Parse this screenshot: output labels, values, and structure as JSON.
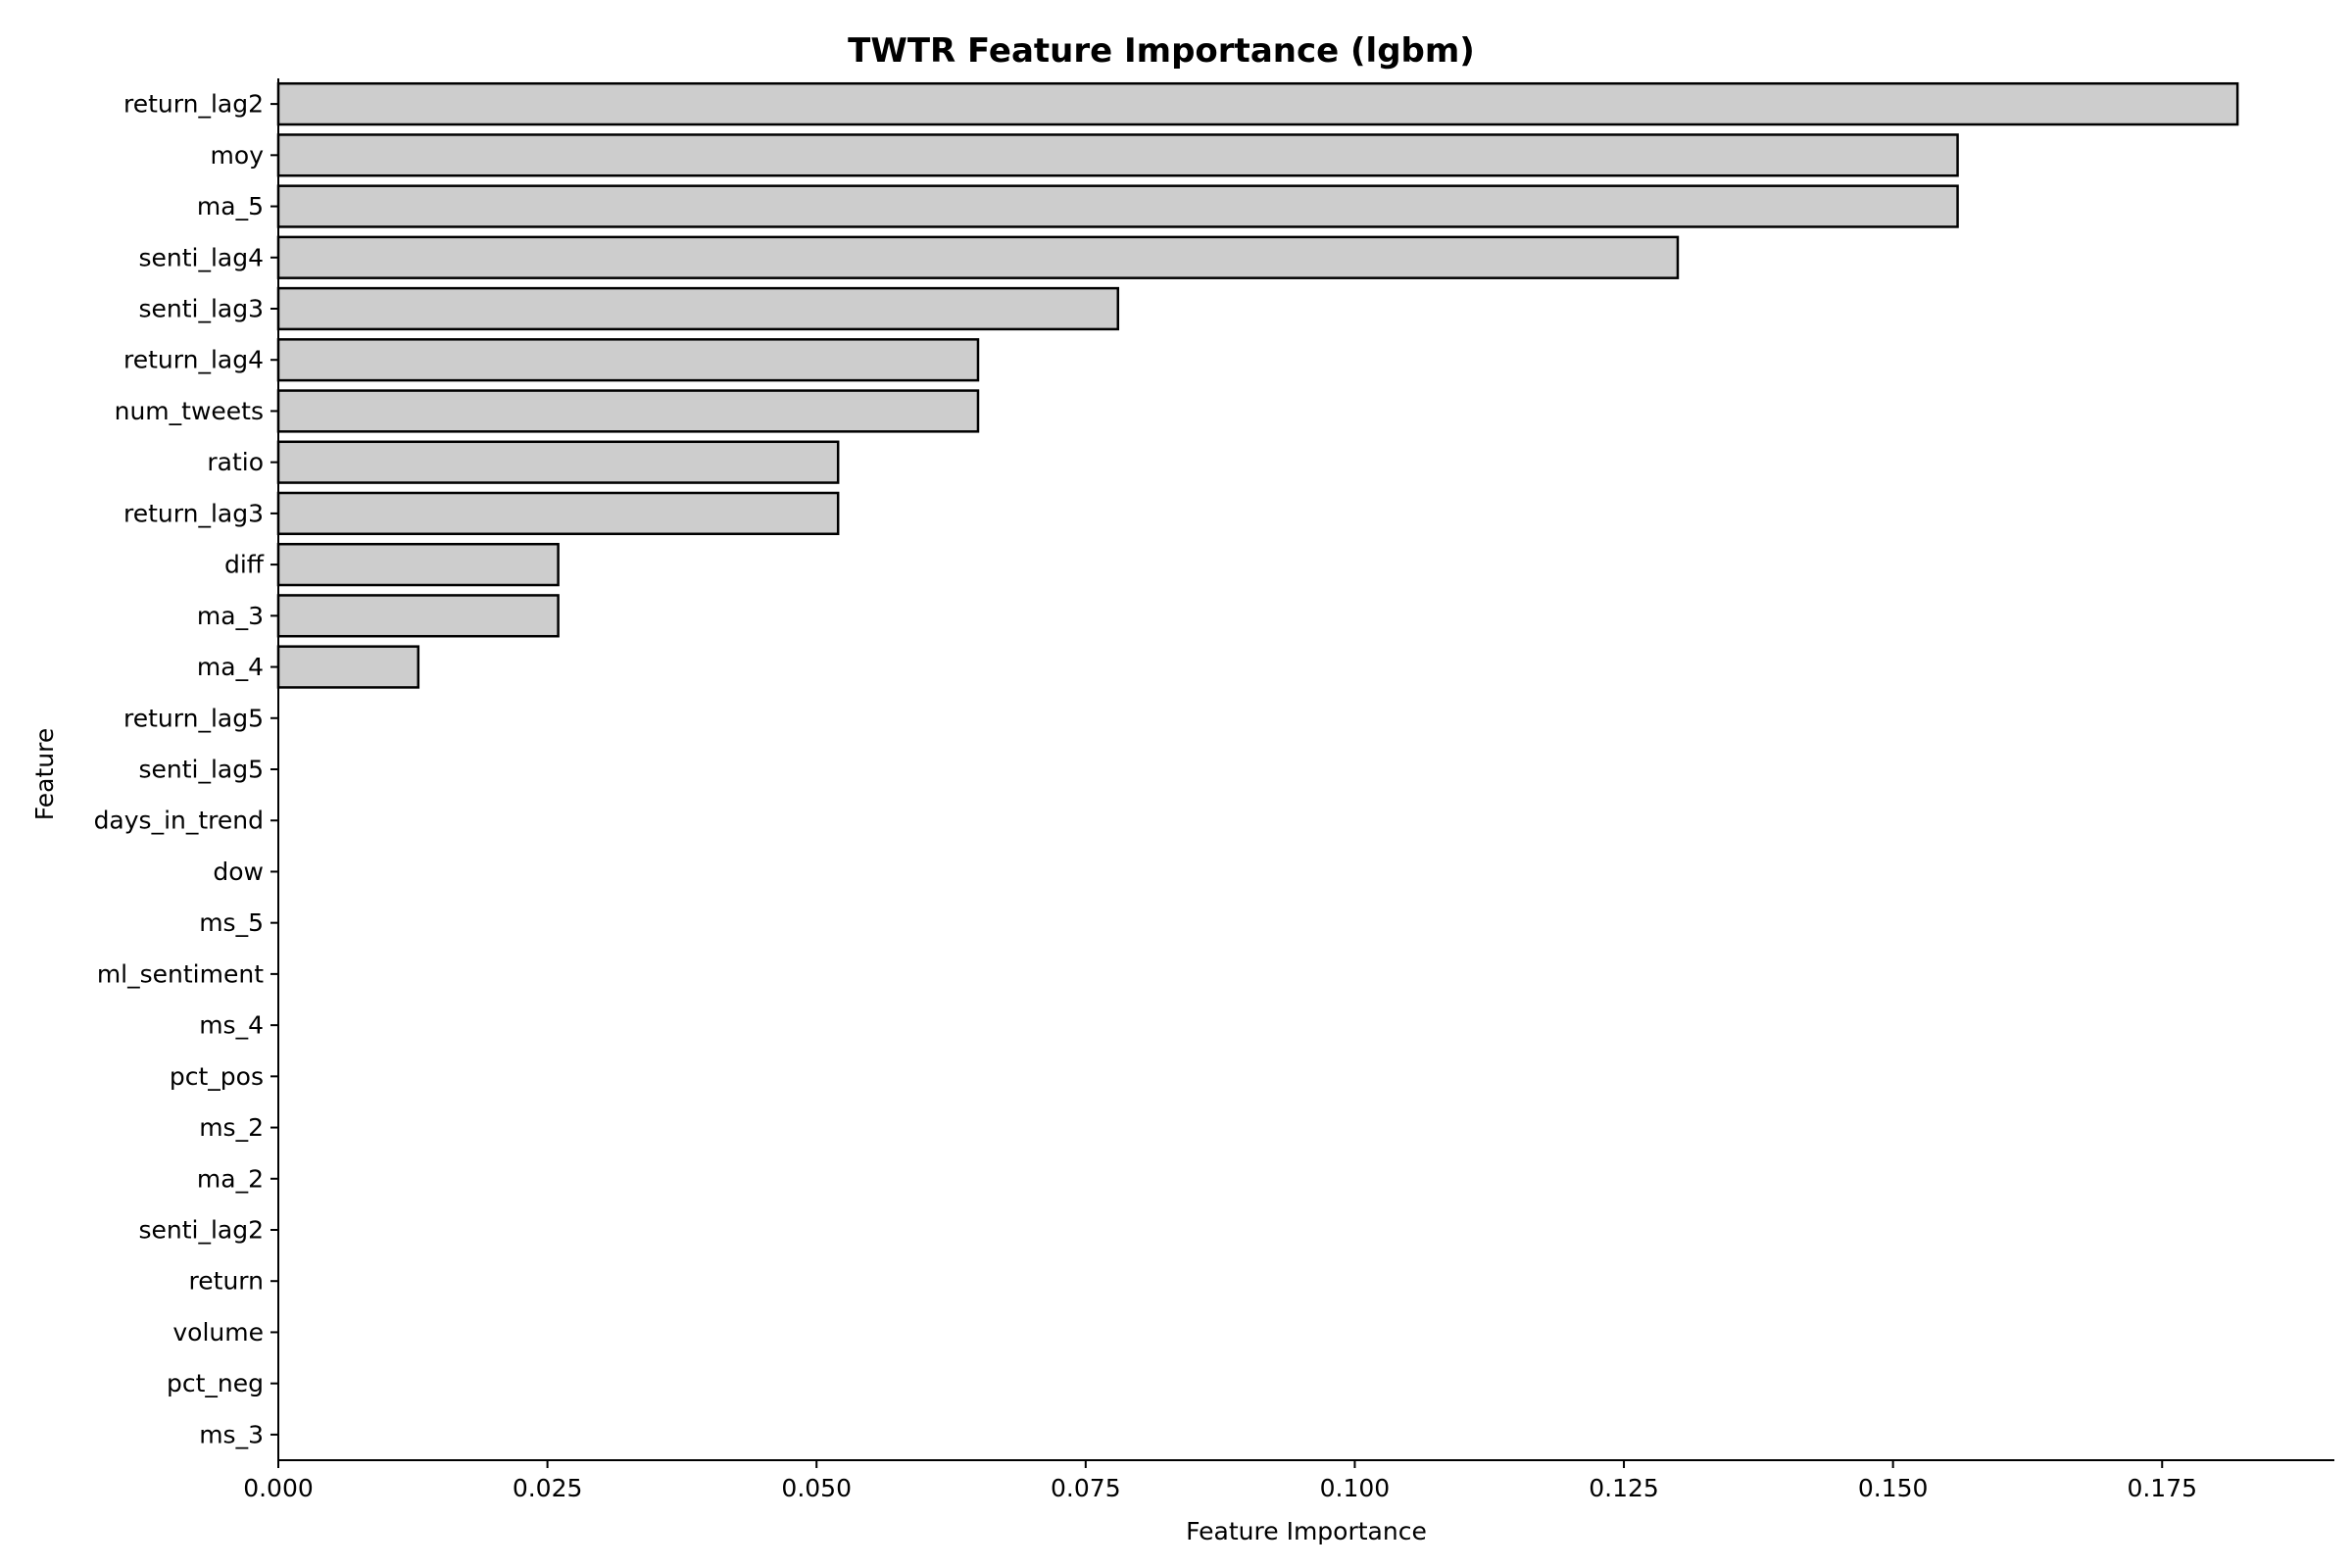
{
  "chart_data": {
    "type": "bar",
    "orientation": "horizontal",
    "title": "TWTR Feature Importance (lgbm)",
    "xlabel": "Feature Importance",
    "ylabel": "Feature",
    "xlim": [
      0,
      0.191
    ],
    "xticks": [
      "0.000",
      "0.025",
      "0.050",
      "0.075",
      "0.100",
      "0.125",
      "0.150",
      "0.175"
    ],
    "grid": false,
    "colors": {
      "bar_fill": "#cdcdcd",
      "bar_edge": "#000000"
    },
    "categories": [
      "return_lag2",
      "moy",
      "ma_5",
      "senti_lag4",
      "senti_lag3",
      "return_lag4",
      "num_tweets",
      "ratio",
      "return_lag3",
      "diff",
      "ma_3",
      "ma_4",
      "return_lag5",
      "senti_lag5",
      "days_in_trend",
      "dow",
      "ms_5",
      "ml_sentiment",
      "ms_4",
      "pct_pos",
      "ms_2",
      "ma_2",
      "senti_lag2",
      "return",
      "volume",
      "pct_neg",
      "ms_3"
    ],
    "values": [
      0.182,
      0.156,
      0.156,
      0.13,
      0.078,
      0.065,
      0.065,
      0.052,
      0.052,
      0.026,
      0.026,
      0.013,
      0,
      0,
      0,
      0,
      0,
      0,
      0,
      0,
      0,
      0,
      0,
      0,
      0,
      0,
      0
    ]
  }
}
